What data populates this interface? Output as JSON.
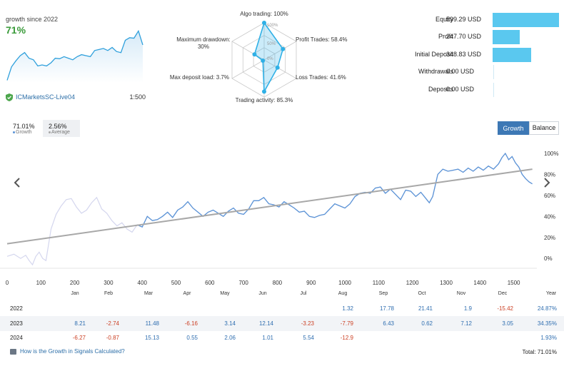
{
  "summary": {
    "growth_caption": "growth since 2022",
    "growth_value": "71%",
    "account": "ICMarketsSC-Live04",
    "leverage": "1:500"
  },
  "radar": {
    "axes": [
      {
        "label": "Algo trading: 100%",
        "value": 100
      },
      {
        "label": "Profit Trades: 58.4%",
        "value": 58.4
      },
      {
        "label": "Loss Trades: 41.6%",
        "value": 41.6
      },
      {
        "label": "Trading activity: 85.3%",
        "value": 85.3
      },
      {
        "label": "Max deposit load: 3.7%",
        "value": 3.7
      },
      {
        "label": "Maximum drawdown: 30%",
        "value": 30
      }
    ],
    "max_drawdown_line1": "Maximum drawdown:",
    "max_drawdown_line2": "30%",
    "scale_labels": [
      "100%",
      "50%",
      "0%"
    ],
    "color": "#2fb0e6"
  },
  "stats": [
    {
      "label": "Equity",
      "value": "599.29 USD",
      "amount": 599.29
    },
    {
      "label": "Profit",
      "value": "247.70 USD",
      "amount": 247.7
    },
    {
      "label": "Initial Deposit",
      "value": "348.83 USD",
      "amount": 348.83
    },
    {
      "label": "Withdrawals",
      "value": "0.00 USD",
      "amount": 0
    },
    {
      "label": "Deposits",
      "value": "0.00 USD",
      "amount": 0
    }
  ],
  "tabs": {
    "growth_value": "71.01%",
    "growth_label": "Growth",
    "average_value": "2.56%",
    "average_label": "Average",
    "btn_growth": "Growth",
    "btn_balance": "Balance"
  },
  "chart_data": {
    "type": "line",
    "x_ticks": [
      "0",
      "100",
      "200",
      "300",
      "400",
      "500",
      "600",
      "700",
      "800",
      "900",
      "1000",
      "1100",
      "1200",
      "1300",
      "1400",
      "1500"
    ],
    "y_ticks": [
      "100%",
      "80%",
      "60%",
      "40%",
      "20%",
      "0%"
    ],
    "xlim": [
      0,
      1560
    ],
    "ylim": [
      -8,
      100
    ],
    "series": [
      {
        "x": [
          0,
          20,
          40,
          55,
          65,
          75,
          85,
          95,
          105,
          115,
          130,
          145,
          160,
          175,
          190,
          205,
          220,
          235,
          250,
          265,
          280,
          295,
          310,
          325,
          340,
          355,
          370,
          385,
          400,
          415,
          430,
          445,
          460,
          475,
          490,
          505,
          520,
          535,
          550,
          565,
          580,
          595,
          610,
          625,
          640,
          655,
          670,
          685,
          700,
          715,
          730,
          745,
          760,
          775,
          790,
          805,
          820,
          835,
          850,
          865,
          880,
          895,
          910,
          925,
          940,
          955,
          970,
          985,
          1000,
          1015,
          1030,
          1045,
          1060,
          1075,
          1090,
          1105,
          1120,
          1135,
          1150,
          1165,
          1180,
          1195,
          1210,
          1225,
          1240,
          1250,
          1260,
          1275,
          1290,
          1305,
          1320,
          1335,
          1350,
          1365,
          1380,
          1395,
          1410,
          1425,
          1440,
          1455,
          1465,
          1475,
          1485,
          1495,
          1505,
          1515,
          1525,
          1535,
          1545,
          1555
        ],
        "y": [
          2,
          4,
          0,
          3,
          -2,
          -6,
          2,
          6,
          0,
          -2,
          28,
          42,
          50,
          56,
          57,
          49,
          43,
          46,
          53,
          58,
          47,
          43,
          36,
          31,
          34,
          28,
          25,
          32,
          30,
          40,
          36,
          37,
          40,
          44,
          39,
          46,
          49,
          54,
          48,
          44,
          40,
          44,
          46,
          43,
          40,
          45,
          48,
          43,
          42,
          47,
          55,
          55,
          58,
          52,
          51,
          49,
          54,
          51,
          48,
          44,
          45,
          40,
          39,
          41,
          42,
          47,
          52,
          50,
          48,
          52,
          59,
          62,
          63,
          62,
          67,
          68,
          62,
          66,
          61,
          56,
          65,
          64,
          59,
          63,
          57,
          53,
          59,
          80,
          85,
          83,
          84,
          85,
          82,
          86,
          83,
          87,
          84,
          88,
          85,
          90,
          96,
          100,
          94,
          97,
          91,
          87,
          80,
          76,
          73,
          71
        ],
        "color": "#5b93d6"
      }
    ],
    "trend": {
      "x": [
        0,
        1555
      ],
      "y": [
        14,
        85
      ],
      "color": "#a8a8a8"
    },
    "mini": {
      "x": [
        0,
        50,
        100,
        150,
        200,
        250,
        300,
        350,
        400,
        450,
        500,
        550,
        600,
        650,
        700,
        750,
        800,
        850,
        900,
        950,
        1000,
        1050,
        1100,
        1150,
        1200,
        1250,
        1300,
        1350,
        1400,
        1450,
        1500,
        1550
      ],
      "y": [
        2,
        28,
        40,
        50,
        56,
        45,
        42,
        30,
        32,
        30,
        36,
        45,
        44,
        48,
        45,
        42,
        48,
        52,
        50,
        48,
        60,
        62,
        64,
        60,
        66,
        58,
        56,
        80,
        85,
        84,
        98,
        71
      ]
    }
  },
  "table": {
    "months": [
      "Jan",
      "Feb",
      "Mar",
      "Apr",
      "May",
      "Jun",
      "Jul",
      "Aug",
      "Sep",
      "Oct",
      "Nov",
      "Dec"
    ],
    "year_header": "Year",
    "rows": [
      {
        "year": "2022",
        "cells": [
          "",
          "",
          "",
          "",
          "",
          "",
          "",
          "1.32",
          "17.78",
          "21.41",
          "1.9",
          "-15.42"
        ],
        "total": "24.87%"
      },
      {
        "year": "2023",
        "cells": [
          "8.21",
          "-2.74",
          "11.48",
          "-6.16",
          "3.14",
          "12.14",
          "-3.23",
          "-7.79",
          "6.43",
          "0.62",
          "7.12",
          "3.05"
        ],
        "total": "34.35%"
      },
      {
        "year": "2024",
        "cells": [
          "-6.27",
          "-0.87",
          "15.13",
          "0.55",
          "2.06",
          "1.01",
          "5.54",
          "-12.9",
          "",
          "",
          "",
          ""
        ],
        "total": "1.93%"
      }
    ]
  },
  "footer": {
    "help": "How is the Growth in Signals Calculated?",
    "total": "Total: 71.01%"
  }
}
